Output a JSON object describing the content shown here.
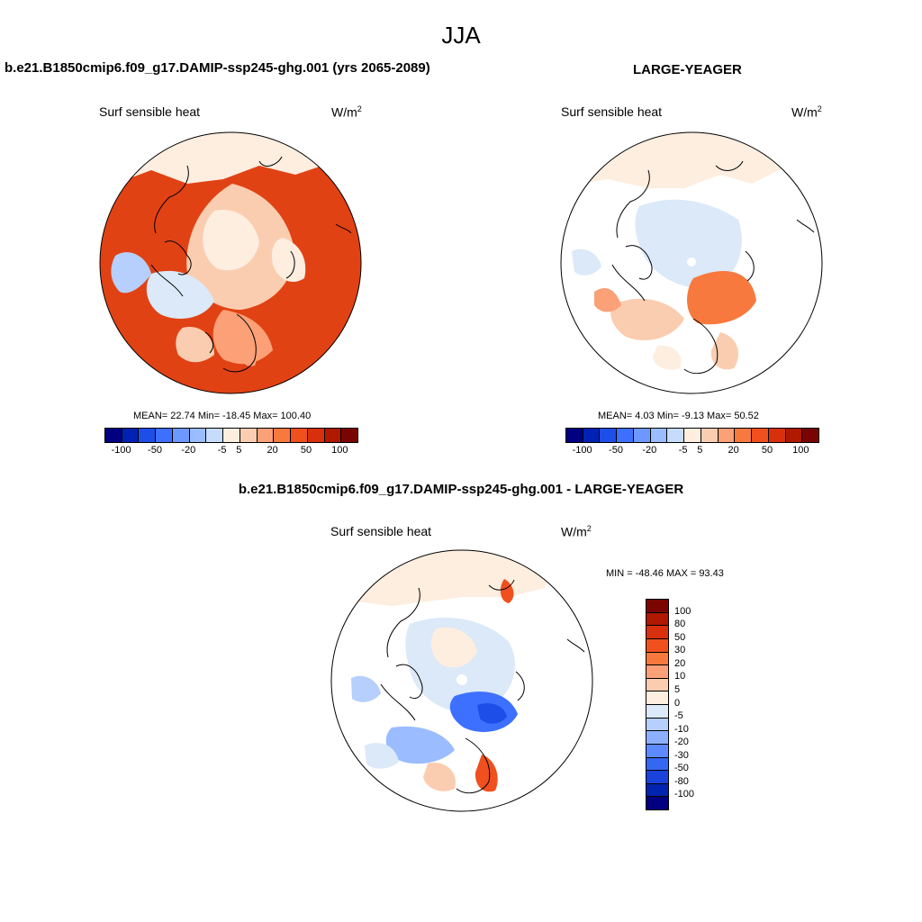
{
  "season": "JJA",
  "panels": {
    "case": {
      "title": "b.e21.B1850cmip6.f09_g17.DAMIP-ssp245-ghg.001 (yrs 2065-2089)",
      "variable": "Surf sensible heat",
      "units_base": "W/m",
      "units_exp": "2",
      "stats": "MEAN=  22.74  Min= -18.45  Max= 100.40"
    },
    "obs": {
      "title": "LARGE-YEAGER",
      "variable": "Surf sensible heat",
      "units_base": "W/m",
      "units_exp": "2",
      "stats": "MEAN=   4.03  Min=  -9.13  Max=  50.52"
    },
    "diff": {
      "title": "b.e21.B1850cmip6.f09_g17.DAMIP-ssp245-ghg.001 - LARGE-YEAGER",
      "variable": "Surf sensible heat",
      "units_base": "W/m",
      "units_exp": "2",
      "stats": "MIN = -48.46 MAX =  93.43"
    }
  },
  "colorbar_top": {
    "colors": [
      "#000080",
      "#0022b4",
      "#1d4ee8",
      "#3d70ff",
      "#6d98ff",
      "#9bbcff",
      "#c6dcfa",
      "#fdeee0",
      "#fbcdb0",
      "#fba077",
      "#f8793e",
      "#f04f1e",
      "#d8300c",
      "#b01800",
      "#7a0500"
    ],
    "labels": [
      "-100",
      "-50",
      "-20",
      "-5",
      "5",
      "20",
      "50",
      "100"
    ]
  },
  "colorbar_diff": {
    "colors": [
      "#7a0500",
      "#b01800",
      "#d8300c",
      "#f04f1e",
      "#f8793e",
      "#fba077",
      "#fbcdb0",
      "#fdeee0",
      "#dbe9f8",
      "#b6cffc",
      "#8cb0ff",
      "#5e8aff",
      "#3467f2",
      "#1a43db",
      "#0024b0",
      "#000080"
    ],
    "labels": [
      "100",
      "80",
      "50",
      "30",
      "20",
      "10",
      "5",
      "0",
      "-5",
      "-10",
      "-20",
      "-30",
      "-50",
      "-80",
      "-100"
    ]
  },
  "colors": {
    "land_outline": "#000000",
    "no_data": "#ffffff"
  }
}
